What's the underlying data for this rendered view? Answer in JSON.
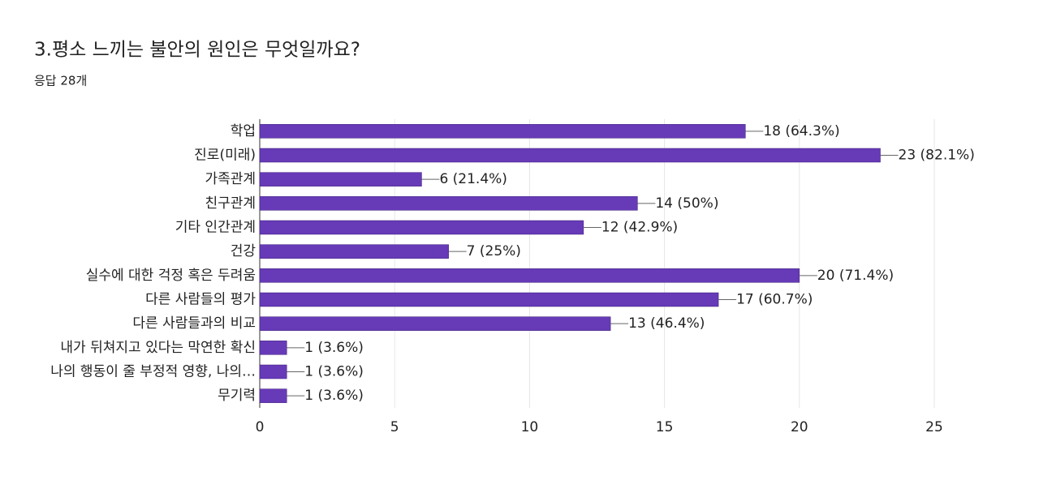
{
  "chart_data": {
    "type": "bar",
    "orientation": "horizontal",
    "title": "3.평소 느끼는 불안의 원인은 무엇일까요?",
    "subtitle": "응답 28개",
    "categories": [
      "학업",
      "진로(미래)",
      "가족관계",
      "친구관계",
      "기타 인간관계",
      "건강",
      "실수에 대한 걱정 혹은 두려움",
      "다른 사람들의 평가",
      "다른 사람들과의 비교",
      "내가 뒤쳐지고 있다는 막연한 확신",
      "나의 행동이 줄 부정적 영향, 나의…",
      "무기력"
    ],
    "values": [
      18,
      23,
      6,
      14,
      12,
      7,
      20,
      17,
      13,
      1,
      1,
      1
    ],
    "value_labels": [
      "18 (64.3%)",
      "23 (82.1%)",
      "6 (21.4%)",
      "14 (50%)",
      "12 (42.9%)",
      "7 (25%)",
      "20 (71.4%)",
      "17 (60.7%)",
      "13 (46.4%)",
      "1 (3.6%)",
      "1 (3.6%)",
      "1 (3.6%)"
    ],
    "color": "#673ab7",
    "xlim": [
      0,
      25
    ],
    "xticks": [
      0,
      5,
      10,
      15,
      20,
      25
    ],
    "grid": true
  }
}
